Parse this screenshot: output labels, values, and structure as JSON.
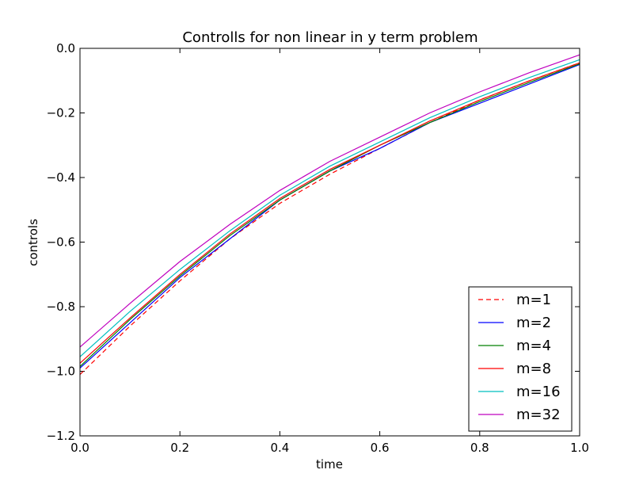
{
  "chart_data": {
    "type": "line",
    "title": "Controlls for non linear in y term problem",
    "xlabel": "time",
    "ylabel": "controls",
    "xlim": [
      0.0,
      1.0
    ],
    "ylim": [
      -1.2,
      0.0
    ],
    "xticks": [
      "0.0",
      "0.2",
      "0.4",
      "0.6",
      "0.8",
      "1.0"
    ],
    "yticks": [
      "0.0",
      "−0.2",
      "−0.4",
      "−0.6",
      "−0.8",
      "−1.0",
      "−1.2"
    ],
    "grid": false,
    "legend_position": "bottom-right",
    "series": [
      {
        "name": "m=1",
        "color": "#ff0000",
        "dash": "dashed",
        "x": [
          0.0,
          0.1,
          0.2,
          0.3,
          0.4,
          0.5,
          0.6,
          0.7,
          0.8,
          0.9,
          1.0
        ],
        "y": [
          -1.01,
          -0.86,
          -0.72,
          -0.59,
          -0.48,
          -0.39,
          -0.31,
          -0.23,
          -0.16,
          -0.1,
          -0.045
        ]
      },
      {
        "name": "m=2",
        "color": "#0000ff",
        "dash": "solid",
        "x": [
          0.0,
          0.1,
          0.2,
          0.3,
          0.4,
          0.5,
          0.6,
          0.7,
          0.8,
          0.9,
          1.0
        ],
        "y": [
          -0.99,
          -0.85,
          -0.71,
          -0.59,
          -0.47,
          -0.38,
          -0.31,
          -0.23,
          -0.17,
          -0.11,
          -0.05
        ]
      },
      {
        "name": "m=4",
        "color": "#008000",
        "dash": "solid",
        "x": [
          0.0,
          0.1,
          0.2,
          0.3,
          0.4,
          0.5,
          0.6,
          0.7,
          0.8,
          0.9,
          1.0
        ],
        "y": [
          -0.985,
          -0.84,
          -0.705,
          -0.58,
          -0.47,
          -0.38,
          -0.3,
          -0.23,
          -0.165,
          -0.105,
          -0.048
        ]
      },
      {
        "name": "m=8",
        "color": "#ff0000",
        "dash": "solid",
        "x": [
          0.0,
          0.1,
          0.2,
          0.3,
          0.4,
          0.5,
          0.6,
          0.7,
          0.8,
          0.9,
          1.0
        ],
        "y": [
          -0.975,
          -0.835,
          -0.7,
          -0.575,
          -0.465,
          -0.375,
          -0.3,
          -0.225,
          -0.16,
          -0.1,
          -0.045
        ]
      },
      {
        "name": "m=16",
        "color": "#00bfbf",
        "dash": "solid",
        "x": [
          0.0,
          0.1,
          0.2,
          0.3,
          0.4,
          0.5,
          0.6,
          0.7,
          0.8,
          0.9,
          1.0
        ],
        "y": [
          -0.955,
          -0.815,
          -0.685,
          -0.565,
          -0.455,
          -0.365,
          -0.29,
          -0.215,
          -0.15,
          -0.09,
          -0.035
        ]
      },
      {
        "name": "m=32",
        "color": "#bf00bf",
        "dash": "solid",
        "x": [
          0.0,
          0.1,
          0.2,
          0.3,
          0.4,
          0.5,
          0.6,
          0.7,
          0.8,
          0.9,
          1.0
        ],
        "y": [
          -0.925,
          -0.79,
          -0.66,
          -0.545,
          -0.44,
          -0.35,
          -0.275,
          -0.2,
          -0.135,
          -0.075,
          -0.02
        ]
      }
    ]
  }
}
